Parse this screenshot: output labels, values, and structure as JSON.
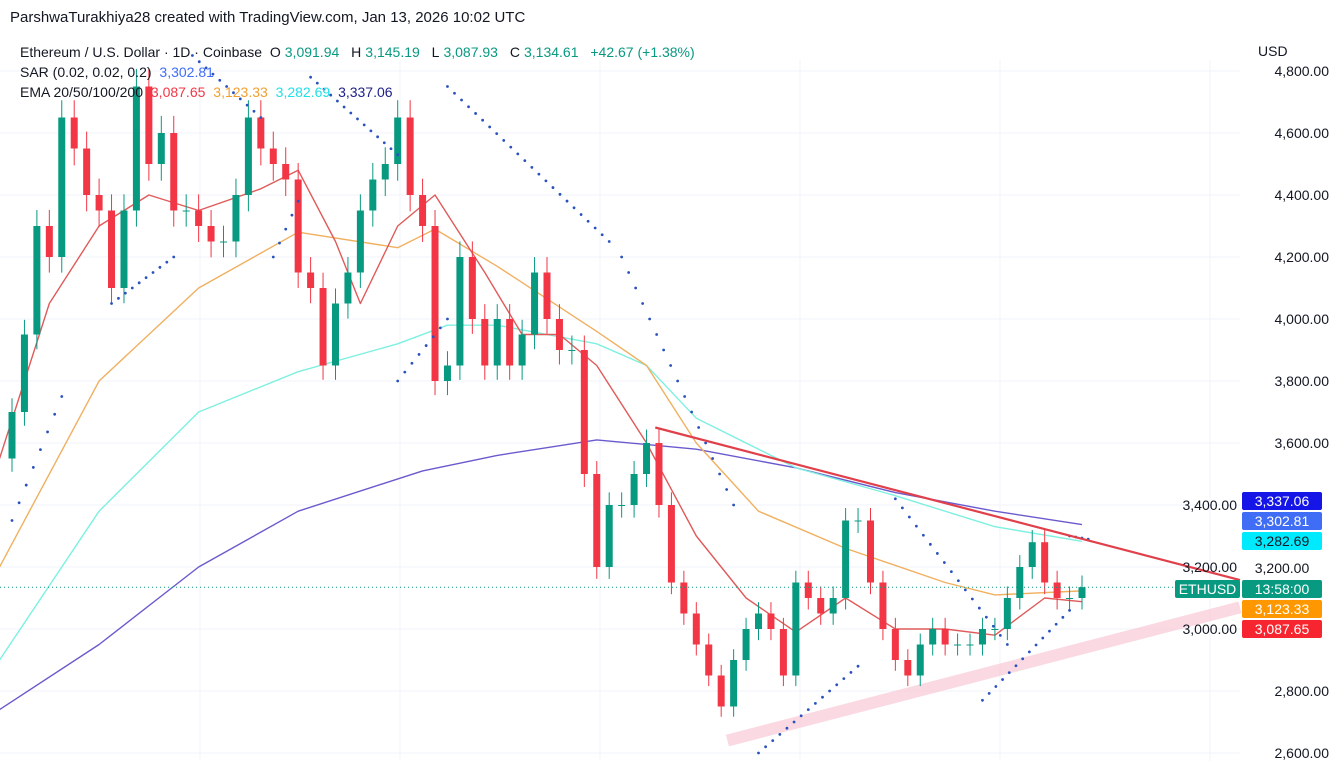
{
  "credit": "ParshwaTurakhiya28 created with TradingView.com, Jan 13, 2026 10:02 UTC",
  "legend": {
    "symbol": "Ethereum / U.S. Dollar · 1D · Coinbase",
    "o_label": "O",
    "o": "3,091.94",
    "h_label": "H",
    "h": "3,145.19",
    "l_label": "L",
    "l": "3,087.93",
    "c_label": "C",
    "c": "3,134.61",
    "change": "+42.67 (+1.38%)",
    "sar_label": "SAR (0.02, 0.02, 0.2)",
    "sar": "3,302.81",
    "ema_label": "EMA 20/50/100/200",
    "ema20": "3,087.65",
    "ema50": "3,123.33",
    "ema100": "3,282.69",
    "ema200": "3,337.06"
  },
  "axis": {
    "currency": "USD"
  },
  "tags": {
    "ema200": "3,337.06",
    "sar": "3,302.81",
    "ema100": "3,282.69",
    "level": "3,200.00",
    "countdown": "13:58:00",
    "symbol": "ETHUSD",
    "ema50": "3,123.33",
    "ema20": "3,087.65"
  },
  "colors": {
    "up": "#089981",
    "down": "#f23645",
    "ema20": "#e05a5a",
    "ema50": "#f0b060",
    "ema100": "#7ff0e0",
    "ema200": "#6a5acd",
    "sar": "#2a52be",
    "trendline": "#e0404a",
    "support_band": "#f9c9d6",
    "ema200_tag": "#1515e8",
    "sar_tag": "#3f6df5",
    "ema100_tag": "#00eaff",
    "ema50_tag": "#ff9800",
    "ema20_tag": "#f7252f"
  },
  "chart_data": {
    "type": "candlestick",
    "ylim": [
      2600,
      4800
    ],
    "yticks": [
      "2,600.00",
      "2,800.00",
      "3,000.00",
      "3,200.00",
      "3,400.00",
      "3,600.00",
      "3,800.00",
      "4,000.00",
      "4,200.00",
      "4,400.00",
      "4,600.00",
      "4,800.00"
    ],
    "first_open": 3550,
    "closes": [
      3700,
      3950,
      4300,
      4200,
      4650,
      4550,
      4400,
      4350,
      4100,
      4350,
      4750,
      4500,
      4600,
      4350,
      4350,
      4300,
      4250,
      4250,
      4400,
      4650,
      4550,
      4500,
      4450,
      4150,
      4100,
      3850,
      4050,
      4150,
      4350,
      4450,
      4500,
      4650,
      4400,
      4300,
      3800,
      3850,
      4200,
      4000,
      3850,
      4000,
      3850,
      3950,
      4150,
      4000,
      3900,
      3900,
      3500,
      3200,
      3400,
      3400,
      3500,
      3600,
      3400,
      3150,
      3050,
      2950,
      2850,
      2750,
      2900,
      3000,
      3050,
      3000,
      2850,
      3150,
      3100,
      3050,
      3100,
      3350,
      3350,
      3150,
      3000,
      2900,
      2850,
      2950,
      3000,
      2950,
      2950,
      2950,
      3000,
      3000,
      3100,
      3200,
      3280,
      3150,
      3100,
      3100,
      3135
    ],
    "last_price": 3134.61,
    "ema": {
      "ema20": [
        [
          -1,
          3550
        ],
        [
          3,
          4050
        ],
        [
          7,
          4300
        ],
        [
          11,
          4400
        ],
        [
          15,
          4350
        ],
        [
          20,
          4420
        ],
        [
          23,
          4480
        ],
        [
          26,
          4250
        ],
        [
          28,
          4050
        ],
        [
          31,
          4300
        ],
        [
          34,
          4400
        ],
        [
          38,
          4150
        ],
        [
          41,
          3950
        ],
        [
          44,
          3950
        ],
        [
          47,
          3850
        ],
        [
          51,
          3600
        ],
        [
          55,
          3300
        ],
        [
          59,
          3100
        ],
        [
          63,
          2990
        ],
        [
          67,
          3100
        ],
        [
          71,
          3000
        ],
        [
          75,
          3000
        ],
        [
          79,
          2980
        ],
        [
          83,
          3100
        ],
        [
          86,
          3088
        ]
      ],
      "ema50": [
        [
          -1,
          3200
        ],
        [
          7,
          3800
        ],
        [
          15,
          4100
        ],
        [
          23,
          4280
        ],
        [
          31,
          4230
        ],
        [
          34,
          4290
        ],
        [
          39,
          4170
        ],
        [
          47,
          3960
        ],
        [
          51,
          3850
        ],
        [
          55,
          3600
        ],
        [
          60,
          3380
        ],
        [
          67,
          3260
        ],
        [
          75,
          3150
        ],
        [
          79,
          3110
        ],
        [
          86,
          3123
        ]
      ],
      "ema100": [
        [
          -1,
          2900
        ],
        [
          7,
          3380
        ],
        [
          15,
          3700
        ],
        [
          23,
          3830
        ],
        [
          31,
          3920
        ],
        [
          35,
          3980
        ],
        [
          39,
          3980
        ],
        [
          47,
          3920
        ],
        [
          51,
          3850
        ],
        [
          55,
          3680
        ],
        [
          63,
          3520
        ],
        [
          71,
          3430
        ],
        [
          79,
          3330
        ],
        [
          86,
          3283
        ]
      ],
      "ema200": [
        [
          -1,
          2740
        ],
        [
          7,
          2950
        ],
        [
          15,
          3200
        ],
        [
          23,
          3380
        ],
        [
          33,
          3510
        ],
        [
          39,
          3560
        ],
        [
          47,
          3610
        ],
        [
          55,
          3580
        ],
        [
          63,
          3520
        ],
        [
          71,
          3440
        ],
        [
          79,
          3380
        ],
        [
          86,
          3337
        ]
      ]
    },
    "sar_segments": [
      [
        [
          0,
          3350
        ],
        [
          4,
          3750
        ]
      ],
      [
        [
          8,
          4050
        ],
        [
          13,
          4200
        ]
      ],
      [
        [
          14.5,
          4850
        ],
        [
          20,
          4650
        ]
      ],
      [
        [
          21,
          4200
        ],
        [
          23,
          4380
        ]
      ],
      [
        [
          24,
          4780
        ],
        [
          31,
          4530
        ]
      ],
      [
        [
          31,
          3800
        ],
        [
          35,
          4000
        ]
      ],
      [
        [
          35,
          4750
        ],
        [
          48,
          4250
        ]
      ],
      [
        [
          49,
          4200
        ],
        [
          58,
          3400
        ]
      ],
      [
        [
          60,
          2600
        ],
        [
          68,
          2880
        ]
      ],
      [
        [
          71,
          3420
        ],
        [
          80,
          2950
        ]
      ],
      [
        [
          78,
          2770
        ],
        [
          85,
          3060
        ]
      ],
      [
        [
          85,
          3300
        ],
        [
          86.5,
          3290
        ]
      ]
    ],
    "trendline": [
      [
        51.7,
        3650
      ],
      [
        98.7,
        3158
      ]
    ],
    "support_band": [
      [
        57.5,
        2640
      ],
      [
        98.7,
        3070
      ]
    ]
  }
}
